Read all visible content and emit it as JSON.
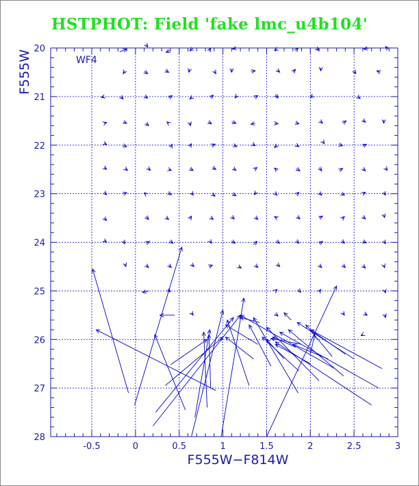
{
  "chart_data": {
    "type": "scatter",
    "title": "HSTPHOT: Field 'fake lmc_u4b104'",
    "panel_label": "WF4",
    "xlabel": "F555W−F814W",
    "ylabel": "F555W",
    "xlim": [
      -0.97,
      3.0
    ],
    "ylim": [
      20.0,
      28.0
    ],
    "y_inverted": true,
    "grid": true,
    "x_ticks": [
      -0.5,
      0,
      0.5,
      1,
      1.5,
      2,
      2.5,
      3
    ],
    "x_tick_labels": [
      "-0.5",
      "0",
      "0.5",
      "1",
      "1.5",
      "2",
      "2.5",
      "3"
    ],
    "y_ticks": [
      20,
      21,
      22,
      23,
      24,
      25,
      26,
      27,
      28
    ],
    "y_tick_labels": [
      "20",
      "21",
      "22",
      "23",
      "24",
      "25",
      "26",
      "27",
      "28"
    ],
    "colors": {
      "title": "#22e022",
      "axes": "#1a1aaa",
      "vectors": "#0000cc",
      "grid": "#0000cc"
    },
    "note": "Each vector goes from input (x0,y0) to recovered (x1,y1) color/magnitude; arrowhead at recovered end.",
    "vectors": [
      {
        "x0": -0.18,
        "y0": 20.08,
        "x1": -0.1,
        "y1": 20.02
      },
      {
        "x0": 0.12,
        "y0": 19.93,
        "x1": 0.14,
        "y1": 19.98
      },
      {
        "x0": 0.4,
        "y0": 20.05,
        "x1": 0.35,
        "y1": 20.09
      },
      {
        "x0": 0.66,
        "y0": 20.0,
        "x1": 0.62,
        "y1": 20.06
      },
      {
        "x0": 0.84,
        "y0": 20.07,
        "x1": 0.86,
        "y1": 20.0
      },
      {
        "x0": 1.16,
        "y0": 20.0,
        "x1": 1.11,
        "y1": 20.02
      },
      {
        "x0": 1.62,
        "y0": 20.02,
        "x1": 1.59,
        "y1": 20.05
      },
      {
        "x0": 1.83,
        "y0": 20.06,
        "x1": 1.86,
        "y1": 20.0
      },
      {
        "x0": 2.07,
        "y0": 20.01,
        "x1": 2.1,
        "y1": 20.05
      },
      {
        "x0": 2.68,
        "y0": 20.0,
        "x1": 2.61,
        "y1": 20.02
      },
      {
        "x0": 2.89,
        "y0": 20.03,
        "x1": 2.86,
        "y1": 19.97
      },
      {
        "x0": -0.12,
        "y0": 20.47,
        "x1": -0.14,
        "y1": 20.53
      },
      {
        "x0": 0.1,
        "y0": 20.48,
        "x1": 0.14,
        "y1": 20.53
      },
      {
        "x0": 0.34,
        "y0": 20.46,
        "x1": 0.38,
        "y1": 20.5
      },
      {
        "x0": 0.62,
        "y0": 20.43,
        "x1": 0.61,
        "y1": 20.5
      },
      {
        "x0": 0.9,
        "y0": 20.47,
        "x1": 0.92,
        "y1": 20.53
      },
      {
        "x0": 1.1,
        "y0": 20.43,
        "x1": 1.1,
        "y1": 20.5
      },
      {
        "x0": 1.32,
        "y0": 20.48,
        "x1": 1.37,
        "y1": 20.47
      },
      {
        "x0": 1.62,
        "y0": 20.45,
        "x1": 1.65,
        "y1": 20.5
      },
      {
        "x0": 1.8,
        "y0": 20.5,
        "x1": 1.83,
        "y1": 20.44
      },
      {
        "x0": 2.12,
        "y0": 20.41,
        "x1": 2.12,
        "y1": 20.47
      },
      {
        "x0": 2.5,
        "y0": 20.47,
        "x1": 2.52,
        "y1": 20.53
      },
      {
        "x0": 2.8,
        "y0": 20.5,
        "x1": 2.76,
        "y1": 20.47
      },
      {
        "x0": -0.36,
        "y0": 21.0,
        "x1": -0.39,
        "y1": 21.02
      },
      {
        "x0": -0.17,
        "y0": 21.0,
        "x1": -0.14,
        "y1": 21.05
      },
      {
        "x0": 0.11,
        "y0": 21.0,
        "x1": 0.14,
        "y1": 21.03
      },
      {
        "x0": 0.38,
        "y0": 21.03,
        "x1": 0.42,
        "y1": 20.98
      },
      {
        "x0": 0.65,
        "y0": 21.01,
        "x1": 0.62,
        "y1": 21.05
      },
      {
        "x0": 0.86,
        "y0": 21.02,
        "x1": 0.89,
        "y1": 20.97
      },
      {
        "x0": 1.16,
        "y0": 20.98,
        "x1": 1.14,
        "y1": 21.03
      },
      {
        "x0": 1.36,
        "y0": 21.02,
        "x1": 1.4,
        "y1": 20.98
      },
      {
        "x0": 1.6,
        "y0": 20.96,
        "x1": 1.63,
        "y1": 21.03
      },
      {
        "x0": 2.03,
        "y0": 20.98,
        "x1": 2.0,
        "y1": 21.02
      },
      {
        "x0": 2.54,
        "y0": 21.0,
        "x1": 2.57,
        "y1": 21.04
      },
      {
        "x0": -0.36,
        "y0": 21.55,
        "x1": -0.33,
        "y1": 21.53
      },
      {
        "x0": -0.14,
        "y0": 21.52,
        "x1": -0.1,
        "y1": 21.55
      },
      {
        "x0": 0.12,
        "y0": 21.55,
        "x1": 0.15,
        "y1": 21.6
      },
      {
        "x0": 0.38,
        "y0": 21.55,
        "x1": 0.36,
        "y1": 21.52
      },
      {
        "x0": 0.62,
        "y0": 21.53,
        "x1": 0.63,
        "y1": 21.6
      },
      {
        "x0": 0.83,
        "y0": 21.52,
        "x1": 0.87,
        "y1": 21.56
      },
      {
        "x0": 1.1,
        "y0": 21.52,
        "x1": 1.15,
        "y1": 21.55
      },
      {
        "x0": 1.37,
        "y0": 21.55,
        "x1": 1.32,
        "y1": 21.57
      },
      {
        "x0": 1.59,
        "y0": 21.55,
        "x1": 1.63,
        "y1": 21.56
      },
      {
        "x0": 1.83,
        "y0": 21.54,
        "x1": 1.87,
        "y1": 21.56
      },
      {
        "x0": 2.11,
        "y0": 21.5,
        "x1": 2.14,
        "y1": 21.55
      },
      {
        "x0": 2.37,
        "y0": 21.55,
        "x1": 2.41,
        "y1": 21.5
      },
      {
        "x0": 2.6,
        "y0": 21.48,
        "x1": 2.63,
        "y1": 21.53
      },
      {
        "x0": 2.84,
        "y0": 21.48,
        "x1": 2.84,
        "y1": 21.55
      },
      {
        "x0": -0.36,
        "y0": 21.96,
        "x1": -0.33,
        "y1": 21.99
      },
      {
        "x0": -0.15,
        "y0": 22.0,
        "x1": -0.1,
        "y1": 22.03
      },
      {
        "x0": 0.4,
        "y0": 22.05,
        "x1": 0.42,
        "y1": 21.98
      },
      {
        "x0": 0.62,
        "y0": 22.03,
        "x1": 0.64,
        "y1": 21.97
      },
      {
        "x0": 0.87,
        "y0": 22.01,
        "x1": 0.91,
        "y1": 21.98
      },
      {
        "x0": 1.12,
        "y0": 22.0,
        "x1": 1.16,
        "y1": 22.03
      },
      {
        "x0": 1.34,
        "y0": 21.98,
        "x1": 1.37,
        "y1": 22.01
      },
      {
        "x0": 1.62,
        "y0": 22.0,
        "x1": 1.59,
        "y1": 22.05
      },
      {
        "x0": 1.84,
        "y0": 22.0,
        "x1": 1.87,
        "y1": 22.03
      },
      {
        "x0": 2.14,
        "y0": 21.92,
        "x1": 2.16,
        "y1": 21.97
      },
      {
        "x0": 2.33,
        "y0": 21.99,
        "x1": 2.37,
        "y1": 22.01
      },
      {
        "x0": 2.6,
        "y0": 22.02,
        "x1": 2.64,
        "y1": 21.98
      },
      {
        "x0": -0.36,
        "y0": 22.46,
        "x1": -0.33,
        "y1": 22.5
      },
      {
        "x0": -0.12,
        "y0": 22.48,
        "x1": -0.09,
        "y1": 22.52
      },
      {
        "x0": 0.14,
        "y0": 22.47,
        "x1": 0.17,
        "y1": 22.52
      },
      {
        "x0": 0.38,
        "y0": 22.5,
        "x1": 0.41,
        "y1": 22.52
      },
      {
        "x0": 0.62,
        "y0": 22.48,
        "x1": 0.66,
        "y1": 22.52
      },
      {
        "x0": 0.88,
        "y0": 22.46,
        "x1": 0.92,
        "y1": 22.5
      },
      {
        "x0": 1.12,
        "y0": 22.48,
        "x1": 1.15,
        "y1": 22.52
      },
      {
        "x0": 1.36,
        "y0": 22.5,
        "x1": 1.39,
        "y1": 22.46
      },
      {
        "x0": 1.62,
        "y0": 22.52,
        "x1": 1.59,
        "y1": 22.47
      },
      {
        "x0": 1.84,
        "y0": 22.48,
        "x1": 1.88,
        "y1": 22.53
      },
      {
        "x0": 2.1,
        "y0": 22.46,
        "x1": 2.13,
        "y1": 22.53
      },
      {
        "x0": 2.33,
        "y0": 22.52,
        "x1": 2.37,
        "y1": 22.48
      },
      {
        "x0": 2.6,
        "y0": 22.48,
        "x1": 2.63,
        "y1": 22.53
      },
      {
        "x0": 2.86,
        "y0": 22.47,
        "x1": 2.88,
        "y1": 22.52
      },
      {
        "x0": -0.36,
        "y0": 22.97,
        "x1": -0.33,
        "y1": 23.02
      },
      {
        "x0": -0.14,
        "y0": 23.0,
        "x1": -0.1,
        "y1": 22.98
      },
      {
        "x0": 0.12,
        "y0": 23.01,
        "x1": 0.1,
        "y1": 22.98
      },
      {
        "x0": 0.37,
        "y0": 22.98,
        "x1": 0.41,
        "y1": 23.02
      },
      {
        "x0": 0.64,
        "y0": 22.98,
        "x1": 0.66,
        "y1": 23.03
      },
      {
        "x0": 0.88,
        "y0": 23.01,
        "x1": 0.91,
        "y1": 23.05
      },
      {
        "x0": 1.11,
        "y0": 23.0,
        "x1": 1.15,
        "y1": 23.04
      },
      {
        "x0": 1.38,
        "y0": 22.97,
        "x1": 1.36,
        "y1": 23.02
      },
      {
        "x0": 1.59,
        "y0": 22.98,
        "x1": 1.62,
        "y1": 23.03
      },
      {
        "x0": 1.84,
        "y0": 23.02,
        "x1": 1.87,
        "y1": 22.97
      },
      {
        "x0": 2.1,
        "y0": 22.98,
        "x1": 2.13,
        "y1": 23.03
      },
      {
        "x0": 2.36,
        "y0": 23.0,
        "x1": 2.39,
        "y1": 23.03
      },
      {
        "x0": 2.6,
        "y0": 23.0,
        "x1": 2.63,
        "y1": 22.97
      },
      {
        "x0": 2.84,
        "y0": 22.97,
        "x1": 2.86,
        "y1": 23.03
      },
      {
        "x0": -0.36,
        "y0": 23.5,
        "x1": -0.33,
        "y1": 23.55
      },
      {
        "x0": 0.12,
        "y0": 23.47,
        "x1": 0.15,
        "y1": 23.53
      },
      {
        "x0": 0.35,
        "y0": 23.49,
        "x1": 0.38,
        "y1": 23.53
      },
      {
        "x0": 0.62,
        "y0": 23.52,
        "x1": 0.64,
        "y1": 23.46
      },
      {
        "x0": 0.86,
        "y0": 23.49,
        "x1": 0.89,
        "y1": 23.53
      },
      {
        "x0": 1.1,
        "y0": 23.47,
        "x1": 1.13,
        "y1": 23.52
      },
      {
        "x0": 1.37,
        "y0": 23.48,
        "x1": 1.4,
        "y1": 23.53
      },
      {
        "x0": 1.62,
        "y0": 23.5,
        "x1": 1.59,
        "y1": 23.47
      },
      {
        "x0": 1.85,
        "y0": 23.47,
        "x1": 1.88,
        "y1": 23.52
      },
      {
        "x0": 2.1,
        "y0": 23.5,
        "x1": 2.14,
        "y1": 23.46
      },
      {
        "x0": 2.36,
        "y0": 23.52,
        "x1": 2.39,
        "y1": 23.47
      },
      {
        "x0": 2.6,
        "y0": 23.47,
        "x1": 2.63,
        "y1": 23.52
      },
      {
        "x0": 2.84,
        "y0": 23.43,
        "x1": 2.85,
        "y1": 23.49
      },
      {
        "x0": -0.36,
        "y0": 23.96,
        "x1": -0.33,
        "y1": 24.0
      },
      {
        "x0": -0.14,
        "y0": 23.97,
        "x1": -0.12,
        "y1": 24.03
      },
      {
        "x0": 0.12,
        "y0": 24.02,
        "x1": 0.16,
        "y1": 23.98
      },
      {
        "x0": 0.39,
        "y0": 23.97,
        "x1": 0.43,
        "y1": 24.02
      },
      {
        "x0": 0.85,
        "y0": 23.97,
        "x1": 0.87,
        "y1": 24.02
      },
      {
        "x0": 1.1,
        "y0": 23.97,
        "x1": 1.14,
        "y1": 24.02
      },
      {
        "x0": 1.35,
        "y0": 24.05,
        "x1": 1.39,
        "y1": 23.98
      },
      {
        "x0": 1.61,
        "y0": 23.97,
        "x1": 1.65,
        "y1": 24.02
      },
      {
        "x0": 1.84,
        "y0": 23.97,
        "x1": 1.87,
        "y1": 24.02
      },
      {
        "x0": 2.1,
        "y0": 24.03,
        "x1": 2.14,
        "y1": 23.98
      },
      {
        "x0": 2.36,
        "y0": 23.97,
        "x1": 2.39,
        "y1": 24.02
      },
      {
        "x0": 2.6,
        "y0": 23.98,
        "x1": 2.64,
        "y1": 24.01
      },
      {
        "x0": 2.84,
        "y0": 23.97,
        "x1": 2.86,
        "y1": 24.03
      },
      {
        "x0": -0.12,
        "y0": 24.44,
        "x1": -0.11,
        "y1": 24.5
      },
      {
        "x0": 0.12,
        "y0": 24.47,
        "x1": 0.15,
        "y1": 24.52
      },
      {
        "x0": 0.38,
        "y0": 24.47,
        "x1": 0.41,
        "y1": 24.52
      },
      {
        "x0": 0.64,
        "y0": 24.45,
        "x1": 0.67,
        "y1": 24.5
      },
      {
        "x0": 0.84,
        "y0": 24.5,
        "x1": 0.88,
        "y1": 24.47
      },
      {
        "x0": 1.18,
        "y0": 24.5,
        "x1": 1.21,
        "y1": 24.53
      },
      {
        "x0": 1.37,
        "y0": 24.47,
        "x1": 1.4,
        "y1": 24.52
      },
      {
        "x0": 1.62,
        "y0": 24.45,
        "x1": 1.65,
        "y1": 24.5
      },
      {
        "x0": 2.1,
        "y0": 24.47,
        "x1": 2.13,
        "y1": 24.52
      },
      {
        "x0": 2.37,
        "y0": 24.47,
        "x1": 2.4,
        "y1": 24.52
      },
      {
        "x0": 2.6,
        "y0": 24.48,
        "x1": 2.63,
        "y1": 24.53
      },
      {
        "x0": 2.84,
        "y0": 24.47,
        "x1": 2.85,
        "y1": 24.52
      },
      {
        "x0": 0.15,
        "y0": 25.0,
        "x1": 0.08,
        "y1": 25.03
      },
      {
        "x0": 0.37,
        "y0": 24.97,
        "x1": 0.4,
        "y1": 25.02
      },
      {
        "x0": 1.6,
        "y0": 25.0,
        "x1": 1.62,
        "y1": 24.97
      },
      {
        "x0": 1.86,
        "y0": 24.97,
        "x1": 1.89,
        "y1": 25.03
      },
      {
        "x0": 2.1,
        "y0": 25.02,
        "x1": 2.12,
        "y1": 24.97
      },
      {
        "x0": 2.85,
        "y0": 24.98,
        "x1": 2.86,
        "y1": 25.04
      },
      {
        "x0": 0.45,
        "y0": 25.5,
        "x1": 0.28,
        "y1": 25.5
      },
      {
        "x0": 0.64,
        "y0": 25.45,
        "x1": 0.66,
        "y1": 25.5
      },
      {
        "x0": 1.6,
        "y0": 25.47,
        "x1": 1.63,
        "y1": 25.52
      },
      {
        "x0": 2.37,
        "y0": 25.45,
        "x1": 2.39,
        "y1": 25.5
      },
      {
        "x0": 2.62,
        "y0": 25.47,
        "x1": 2.65,
        "y1": 25.5
      },
      {
        "x0": 2.85,
        "y0": 25.48,
        "x1": 2.86,
        "y1": 25.55
      },
      {
        "x0": 2.6,
        "y0": 25.9,
        "x1": 2.58,
        "y1": 25.92
      },
      {
        "x0": -0.08,
        "y0": 27.1,
        "x1": -0.49,
        "y1": 24.55
      },
      {
        "x0": -0.01,
        "y0": 27.35,
        "x1": 0.53,
        "y1": 24.1
      },
      {
        "x0": 0.92,
        "y0": 27.05,
        "x1": -0.45,
        "y1": 25.8
      },
      {
        "x0": 0.57,
        "y0": 27.45,
        "x1": 0.22,
        "y1": 25.9
      },
      {
        "x0": 0.23,
        "y0": 27.5,
        "x1": 1.12,
        "y1": 25.55
      },
      {
        "x0": 0.2,
        "y0": 27.78,
        "x1": 1.2,
        "y1": 25.5
      },
      {
        "x0": 0.34,
        "y0": 26.95,
        "x1": 1.0,
        "y1": 25.95
      },
      {
        "x0": 0.4,
        "y0": 26.52,
        "x1": 0.82,
        "y1": 26.0
      },
      {
        "x0": 0.82,
        "y0": 27.4,
        "x1": 0.78,
        "y1": 25.85
      },
      {
        "x0": 0.68,
        "y0": 27.6,
        "x1": 0.85,
        "y1": 25.8
      },
      {
        "x0": 0.64,
        "y0": 28.0,
        "x1": 1.0,
        "y1": 25.4
      },
      {
        "x0": 0.98,
        "y0": 28.0,
        "x1": 1.24,
        "y1": 25.15
      },
      {
        "x0": 0.86,
        "y0": 27.0,
        "x1": 0.84,
        "y1": 25.9
      },
      {
        "x0": 1.35,
        "y0": 26.4,
        "x1": 1.03,
        "y1": 25.95
      },
      {
        "x0": 1.3,
        "y0": 26.95,
        "x1": 1.05,
        "y1": 25.6
      },
      {
        "x0": 1.55,
        "y0": 26.55,
        "x1": 1.3,
        "y1": 25.7
      },
      {
        "x0": 1.5,
        "y0": 28.0,
        "x1": 2.3,
        "y1": 24.9
      },
      {
        "x0": 1.86,
        "y0": 27.1,
        "x1": 1.35,
        "y1": 25.55
      },
      {
        "x0": 1.87,
        "y0": 26.65,
        "x1": 1.45,
        "y1": 25.95
      },
      {
        "x0": 2.1,
        "y0": 26.85,
        "x1": 1.5,
        "y1": 25.75
      },
      {
        "x0": 2.28,
        "y0": 26.6,
        "x1": 1.2,
        "y1": 25.5
      },
      {
        "x0": 2.7,
        "y0": 27.35,
        "x1": 1.6,
        "y1": 26.05
      },
      {
        "x0": 2.78,
        "y0": 27.0,
        "x1": 1.65,
        "y1": 25.85
      },
      {
        "x0": 2.82,
        "y0": 26.6,
        "x1": 2.0,
        "y1": 25.8
      },
      {
        "x0": 2.5,
        "y0": 26.4,
        "x1": 1.85,
        "y1": 25.65
      },
      {
        "x0": 2.38,
        "y0": 26.75,
        "x1": 1.75,
        "y1": 25.8
      },
      {
        "x0": 2.25,
        "y0": 26.35,
        "x1": 1.95,
        "y1": 25.7
      },
      {
        "x0": 2.0,
        "y0": 26.5,
        "x1": 1.6,
        "y1": 26.1
      },
      {
        "x0": 1.7,
        "y0": 26.4,
        "x1": 1.5,
        "y1": 26.0
      },
      {
        "x0": 1.82,
        "y0": 26.15,
        "x1": 1.57,
        "y1": 25.95
      },
      {
        "x0": 2.2,
        "y0": 26.4,
        "x1": 1.8,
        "y1": 26.1
      },
      {
        "x0": 1.4,
        "y0": 26.1,
        "x1": 1.03,
        "y1": 25.7
      },
      {
        "x0": 1.42,
        "y0": 25.65,
        "x1": 1.2,
        "y1": 25.55
      },
      {
        "x0": 2.4,
        "y0": 26.3,
        "x1": 2.0,
        "y1": 25.8
      },
      {
        "x0": 2.0,
        "y0": 26.3,
        "x1": 2.05,
        "y1": 25.9
      },
      {
        "x0": 1.78,
        "y0": 25.6,
        "x1": 1.7,
        "y1": 25.45
      },
      {
        "x0": 1.9,
        "y0": 26.1,
        "x1": 1.55,
        "y1": 25.98
      }
    ]
  }
}
